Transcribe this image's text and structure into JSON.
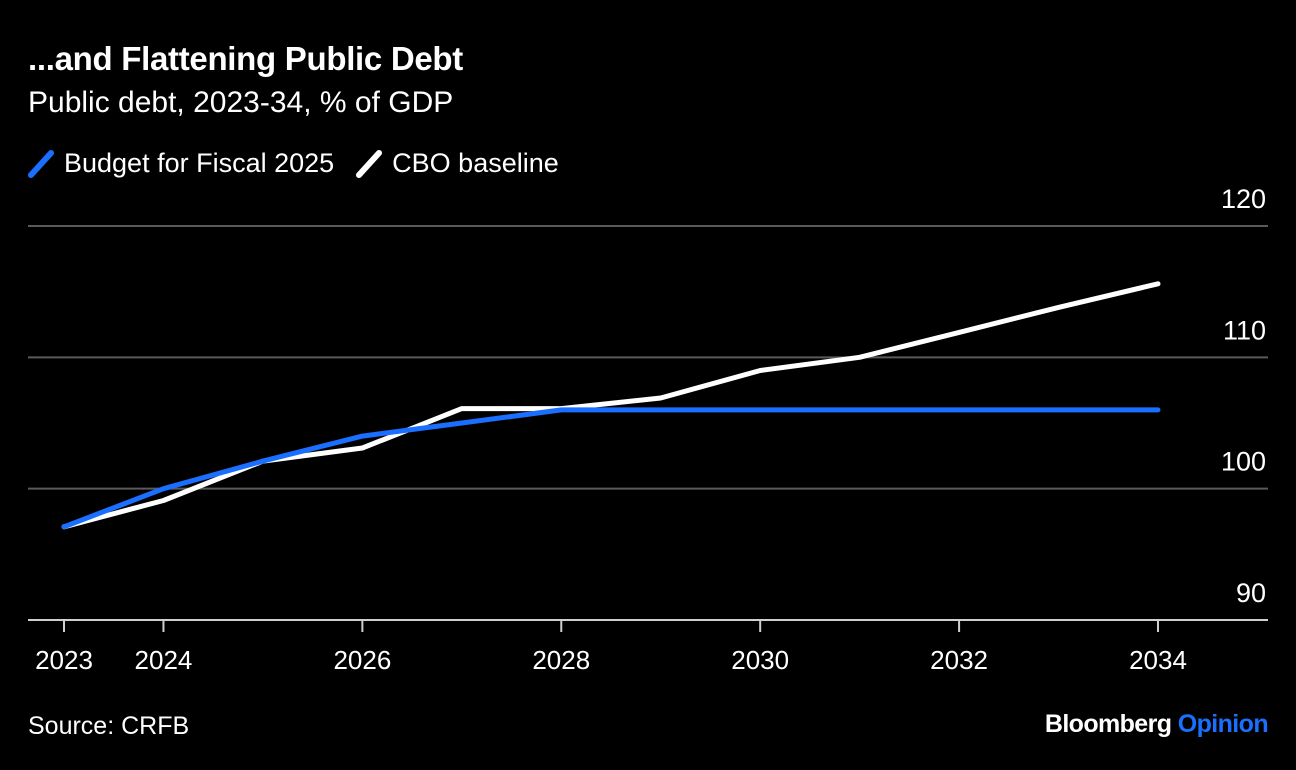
{
  "header": {
    "title": "...and Flattening Public Debt",
    "subtitle": "Public debt, 2023-34, % of GDP"
  },
  "footer": {
    "source": "Source: CRFB",
    "brand_main": "Bloomberg",
    "brand_accent": "Opinion"
  },
  "colors": {
    "background": "#000000",
    "budget_series": "#1a6fff",
    "cbo_series": "#ffffff",
    "gridline": "#5a5a5a"
  },
  "chart_data": {
    "type": "line",
    "title": "...and Flattening Public Debt",
    "subtitle": "Public debt, 2023-34, % of GDP",
    "xlabel": "",
    "ylabel": "",
    "x": [
      2023,
      2024,
      2025,
      2026,
      2027,
      2028,
      2029,
      2030,
      2031,
      2032,
      2033,
      2034
    ],
    "xticks": [
      "2023",
      "2024",
      "2026",
      "2028",
      "2030",
      "2032",
      "2034"
    ],
    "yticks": [
      "90",
      "100",
      "110",
      "120"
    ],
    "ylim": [
      90,
      120
    ],
    "y_axis_position": "right",
    "grid": true,
    "legend_position": "top-left",
    "series": [
      {
        "name": "Budget for Fiscal 2025",
        "color": "#1a6fff",
        "values": [
          97.1,
          100.0,
          102.1,
          104.0,
          105.0,
          106.0,
          106.0,
          106.0,
          106.0,
          106.0,
          106.0,
          106.0
        ]
      },
      {
        "name": "CBO baseline",
        "color": "#ffffff",
        "values": [
          97.1,
          99.1,
          102.1,
          103.1,
          106.1,
          106.1,
          106.9,
          109.0,
          110.0,
          111.9,
          113.8,
          115.6
        ]
      }
    ]
  }
}
